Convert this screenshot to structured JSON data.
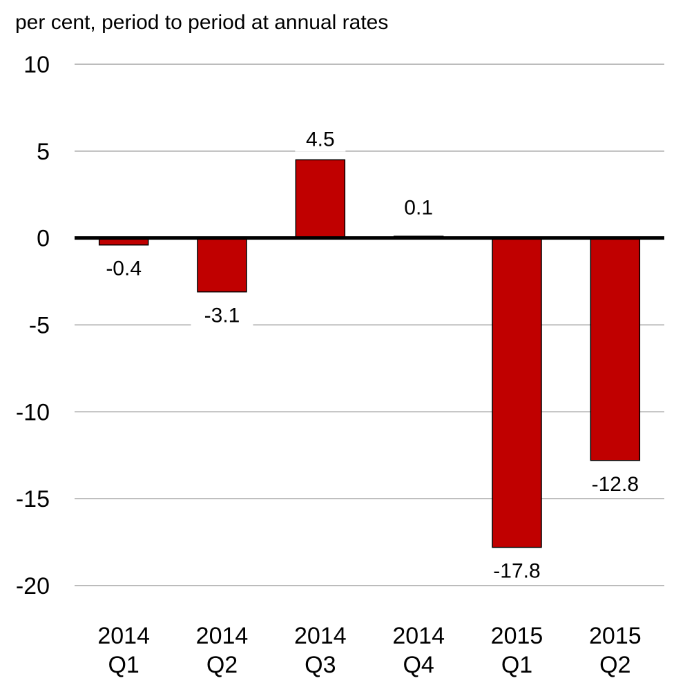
{
  "chart_data": {
    "type": "bar",
    "title": "",
    "ylabel": "per cent, period to period at annual rates",
    "xlabel": "",
    "categories": [
      [
        "2014",
        "Q1"
      ],
      [
        "2014",
        "Q2"
      ],
      [
        "2014",
        "Q3"
      ],
      [
        "2014",
        "Q4"
      ],
      [
        "2015",
        "Q1"
      ],
      [
        "2015",
        "Q2"
      ]
    ],
    "values": [
      -0.4,
      -3.1,
      4.5,
      0.1,
      -17.8,
      -12.8
    ],
    "data_labels": [
      "-0.4",
      "-3.1",
      "4.5",
      "0.1",
      "-17.8",
      "-12.8"
    ],
    "ylim": [
      -20,
      10
    ],
    "yticks": [
      10,
      5,
      0,
      -5,
      -10,
      -15,
      -20
    ],
    "ytick_labels": [
      "10",
      "5",
      "0",
      "-5",
      "-10",
      "-15",
      "-20"
    ],
    "grid": true,
    "legend": "none",
    "bar_color": "#c00000",
    "bar_edge_color": "#000000",
    "gridline_color": "#a6a6a6",
    "zero_line_color": "#000000"
  }
}
